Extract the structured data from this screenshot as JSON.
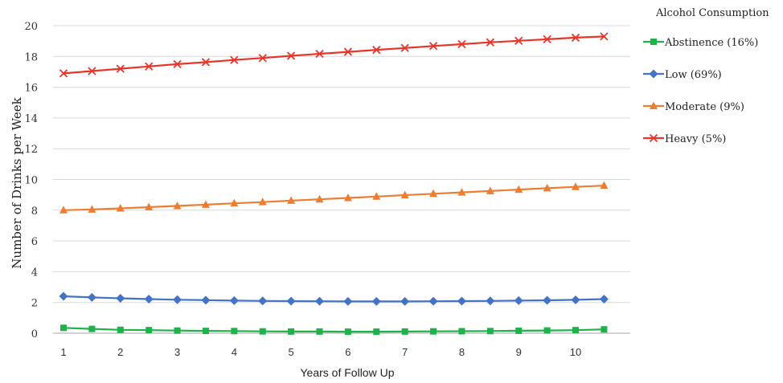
{
  "chart_data": {
    "type": "line",
    "xlabel": "Years of Follow Up",
    "ylabel": "Number of Drinks per Week",
    "xlim": [
      1,
      10.5
    ],
    "ylim": [
      0,
      20
    ],
    "x_ticks": [
      1,
      2,
      3,
      4,
      5,
      6,
      7,
      8,
      9,
      10
    ],
    "y_ticks": [
      0,
      2,
      4,
      6,
      8,
      10,
      12,
      14,
      16,
      18,
      20
    ],
    "grid": true,
    "legend_title": "Alcohol Consumption",
    "legend_position": "right",
    "x": [
      1,
      1.5,
      2,
      2.5,
      3,
      3.5,
      4,
      4.5,
      5,
      5.5,
      6,
      6.5,
      7,
      7.5,
      8,
      8.5,
      9,
      9.5,
      10,
      10.5
    ],
    "series": [
      {
        "name": "Abstinence (16%)",
        "color": "#1fb24a",
        "marker": "square",
        "values": [
          0.35,
          0.28,
          0.22,
          0.2,
          0.17,
          0.15,
          0.14,
          0.12,
          0.11,
          0.11,
          0.1,
          0.1,
          0.11,
          0.12,
          0.13,
          0.14,
          0.16,
          0.18,
          0.2,
          0.25
        ]
      },
      {
        "name": "Low (69%)",
        "color": "#4472c4",
        "marker": "diamond",
        "values": [
          2.4,
          2.33,
          2.27,
          2.22,
          2.18,
          2.15,
          2.12,
          2.1,
          2.09,
          2.08,
          2.07,
          2.07,
          2.07,
          2.08,
          2.09,
          2.1,
          2.12,
          2.14,
          2.17,
          2.22
        ]
      },
      {
        "name": "Moderate (9%)",
        "color": "#ed7d31",
        "marker": "triangle",
        "values": [
          8.0,
          8.05,
          8.12,
          8.2,
          8.28,
          8.36,
          8.45,
          8.53,
          8.62,
          8.71,
          8.8,
          8.89,
          8.98,
          9.07,
          9.16,
          9.25,
          9.34,
          9.43,
          9.52,
          9.6
        ]
      },
      {
        "name": "Heavy (5%)",
        "color": "#e8352a",
        "marker": "x",
        "values": [
          16.9,
          17.05,
          17.2,
          17.35,
          17.5,
          17.63,
          17.77,
          17.9,
          18.04,
          18.17,
          18.3,
          18.43,
          18.55,
          18.68,
          18.8,
          18.92,
          19.02,
          19.12,
          19.22,
          19.3
        ]
      }
    ]
  }
}
